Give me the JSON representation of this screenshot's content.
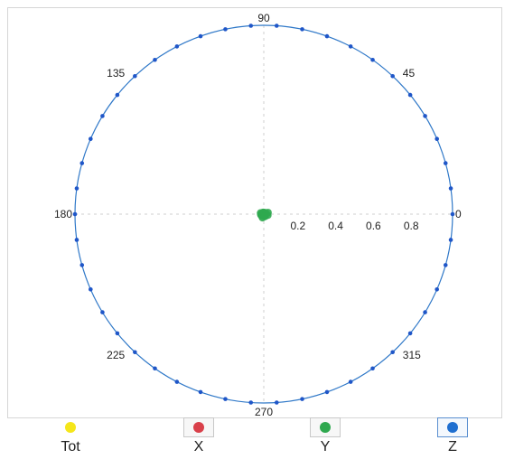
{
  "chart_data": {
    "type": "scatter",
    "coordinate_system": "polar",
    "angle_ticks": [
      {
        "angle": 0,
        "label": "0"
      },
      {
        "angle": 45,
        "label": "45"
      },
      {
        "angle": 90,
        "label": "90"
      },
      {
        "angle": 135,
        "label": "135"
      },
      {
        "angle": 180,
        "label": "180"
      },
      {
        "angle": 225,
        "label": "225"
      },
      {
        "angle": 270,
        "label": "270"
      },
      {
        "angle": 315,
        "label": "315"
      }
    ],
    "radial_ticks": [
      {
        "value": 0.2,
        "label": "0.2"
      },
      {
        "value": 0.4,
        "label": "0.4"
      },
      {
        "value": 0.6,
        "label": "0.6"
      },
      {
        "value": 0.8,
        "label": "0.8"
      }
    ],
    "radial_range": [
      0,
      1
    ],
    "boundary_circle": {
      "radius": 1,
      "color": "#2f78c8",
      "marker_count": 46,
      "marker_color": "#1f56c8"
    },
    "series": [
      {
        "name": "Y",
        "color": "#2fa84f",
        "points": [
          {
            "r": 0.005,
            "theta": 0
          },
          {
            "r": 0.012,
            "theta": 40
          },
          {
            "r": 0.01,
            "theta": 110
          },
          {
            "r": 0.018,
            "theta": 160
          },
          {
            "r": 0.015,
            "theta": 210
          },
          {
            "r": 0.02,
            "theta": 250
          },
          {
            "r": 0.014,
            "theta": 300
          },
          {
            "r": 0.022,
            "theta": 345
          },
          {
            "r": 0.008,
            "theta": 80
          },
          {
            "r": 0.016,
            "theta": 190
          },
          {
            "r": 0.024,
            "theta": 20
          },
          {
            "r": 0.011,
            "theta": 275
          }
        ]
      }
    ],
    "grid": true
  },
  "legend": {
    "items": [
      {
        "key": "tot",
        "label": "Tot",
        "color": "#f5e61a",
        "style": "plain"
      },
      {
        "key": "x",
        "label": "X",
        "color": "#d9404a",
        "style": "boxed"
      },
      {
        "key": "y",
        "label": "Y",
        "color": "#2fa84f",
        "style": "boxed"
      },
      {
        "key": "z",
        "label": "Z",
        "color": "#1f6fd0",
        "style": "active"
      }
    ]
  }
}
